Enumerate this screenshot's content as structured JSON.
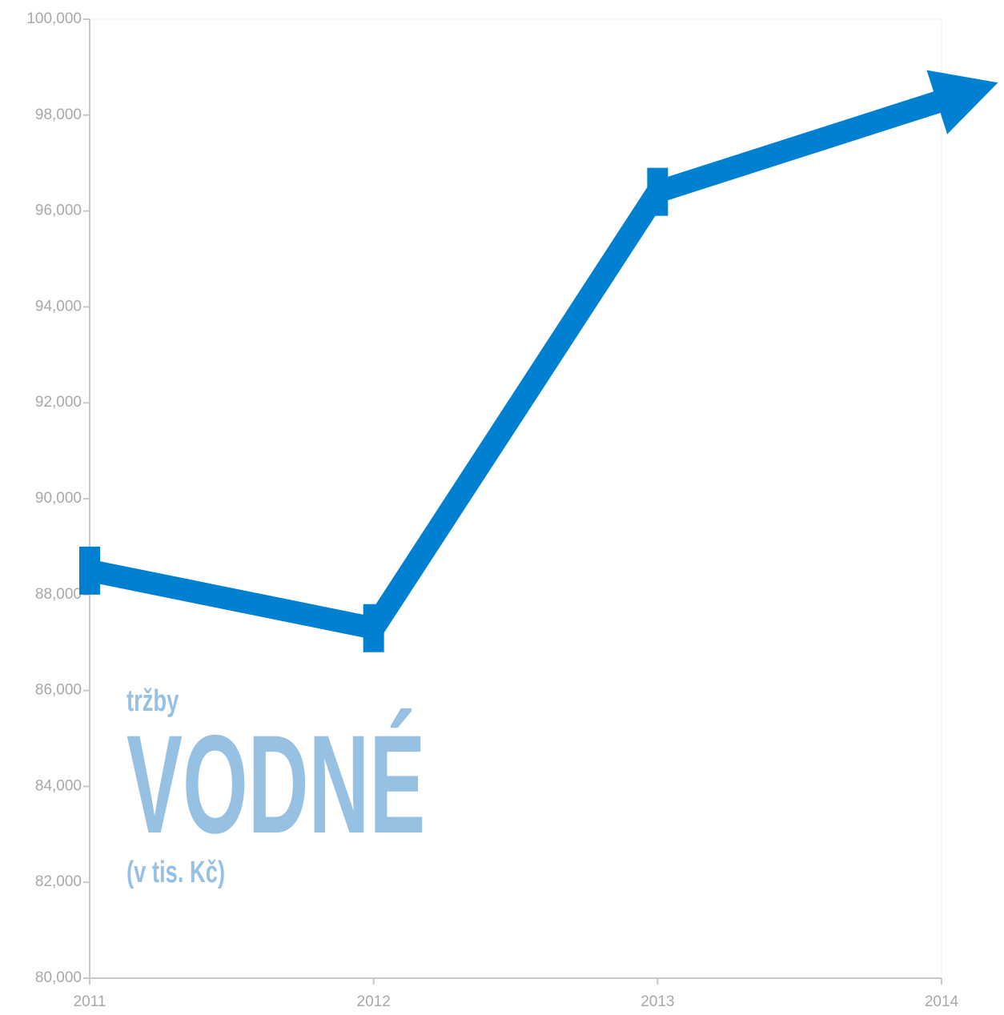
{
  "chart_data": {
    "type": "line",
    "x": [
      2011,
      2012,
      2013,
      2014
    ],
    "series": [
      {
        "name": "tržby vodné",
        "color": "#0080d0",
        "values": [
          88500,
          87300,
          96400,
          98300
        ]
      }
    ],
    "xlim": [
      2011,
      2014
    ],
    "xticks": [
      2011,
      2012,
      2013,
      2014
    ],
    "ylim": [
      80000,
      100000
    ],
    "yticks": [
      {
        "value": 80000,
        "label": "80,000"
      },
      {
        "value": 82000,
        "label": "82,000"
      },
      {
        "value": 84000,
        "label": "84,000"
      },
      {
        "value": 86000,
        "label": "86,000"
      },
      {
        "value": 88000,
        "label": "88,000"
      },
      {
        "value": 90000,
        "label": "90,000"
      },
      {
        "value": 92000,
        "label": "92,000"
      },
      {
        "value": 94000,
        "label": "94,000"
      },
      {
        "value": 96000,
        "label": "96,000"
      },
      {
        "value": 98000,
        "label": "98,000"
      },
      {
        "value": 100000,
        "label": "100,000"
      }
    ],
    "annotations": [
      "tržby",
      "VODNÉ",
      "(v tis. Kč)"
    ]
  }
}
